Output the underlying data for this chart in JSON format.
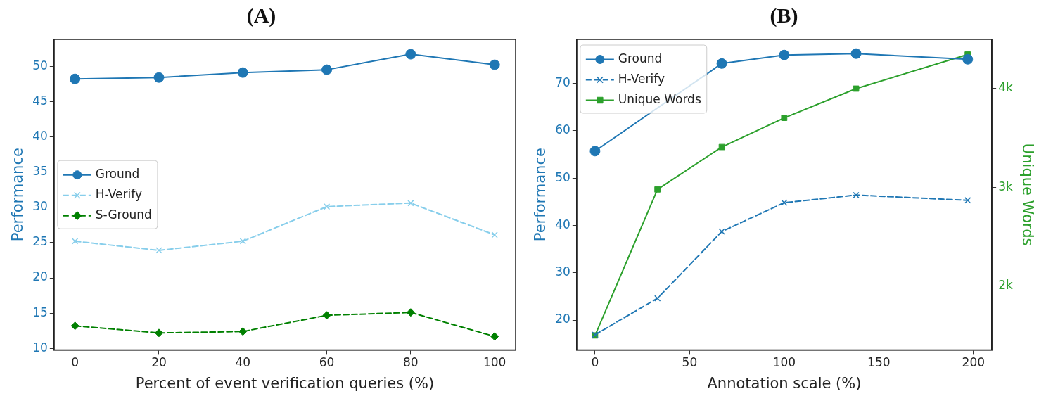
{
  "chart_data": [
    {
      "type": "line",
      "title": "(A)",
      "xlabel": "Percent of event verification queries (%)",
      "ylabel": "Performance",
      "x": [
        0,
        20,
        40,
        60,
        80,
        100
      ],
      "xlim": [
        -5,
        105
      ],
      "xticks": [
        0,
        20,
        40,
        60,
        80,
        100
      ],
      "ylim": [
        9.8,
        53.8
      ],
      "yticks": [
        10,
        15,
        20,
        25,
        30,
        35,
        40,
        45,
        50
      ],
      "grid": false,
      "legend": "center left",
      "series": [
        {
          "name": "Ground",
          "color": "#1f77b4",
          "marker": "circle",
          "line_style": "solid",
          "values": [
            48.2,
            48.4,
            49.1,
            49.5,
            51.7,
            50.2
          ]
        },
        {
          "name": "H-Verify",
          "color": "#87ceeb",
          "marker": "cross",
          "line_style": "dashed",
          "values": [
            25.2,
            23.9,
            25.2,
            30.1,
            30.6,
            26.1
          ]
        },
        {
          "name": "S-Ground",
          "color": "#008000",
          "marker": "diamond",
          "line_style": "dashed",
          "values": [
            13.2,
            12.2,
            12.4,
            14.7,
            15.1,
            11.7
          ]
        }
      ]
    },
    {
      "type": "line",
      "title": "(B)",
      "xlabel": "Annotation scale (%)",
      "ylabel": "Performance",
      "y2label": "Unique Words",
      "x": [
        0,
        33,
        67,
        100,
        138,
        197
      ],
      "xlim": [
        -9.7,
        209.8
      ],
      "xticks": [
        0,
        50,
        100,
        150,
        200
      ],
      "ylim": [
        13.7,
        79.3
      ],
      "yticks": [
        20,
        30,
        40,
        50,
        60,
        70
      ],
      "y2lim": [
        1354,
        4495
      ],
      "y2ticks": [
        {
          "value": 2000,
          "label": "2k"
        },
        {
          "value": 3000,
          "label": "3k"
        },
        {
          "value": 4000,
          "label": "4k"
        }
      ],
      "grid": false,
      "legend": "top left",
      "series": [
        {
          "name": "Ground",
          "color": "#1f77b4",
          "marker": "circle",
          "line_style": "solid",
          "values": [
            55.7,
            74.2,
            76.0,
            76.3,
            75.1
          ],
          "x": [
            0,
            67,
            100,
            138,
            197
          ]
        },
        {
          "name": "H-Verify",
          "color": "#1f77b4",
          "marker": "cross",
          "line_style": "dashed",
          "values": [
            16.9,
            24.6,
            38.7,
            44.8,
            46.4,
            45.3
          ]
        },
        {
          "name": "Unique Words",
          "color": "#2ca02c",
          "marker": "square",
          "line_style": "solid",
          "axis": "y2",
          "values": [
            1500,
            2977,
            3406,
            3701,
            3997,
            4342
          ]
        }
      ]
    }
  ]
}
